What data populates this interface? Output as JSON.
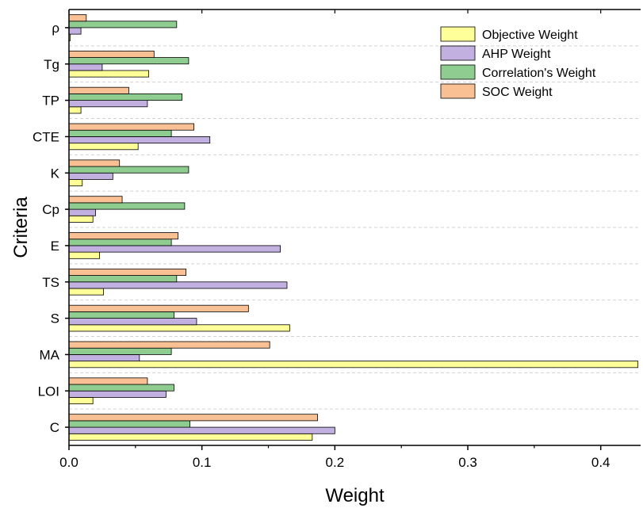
{
  "chart_data": {
    "type": "bar",
    "orientation": "horizontal",
    "xlabel": "Weight",
    "ylabel": "Criteria",
    "xlim": [
      0,
      0.43
    ],
    "xticks": [
      0.0,
      0.1,
      0.2,
      0.3,
      0.4
    ],
    "xtick_labels": [
      "0.0",
      "0.1",
      "0.2",
      "0.3",
      "0.4"
    ],
    "grid": "horizontal dashed",
    "legend_position": "top-right",
    "categories": [
      "C",
      "LOI",
      "MA",
      "S",
      "TS",
      "E",
      "Cp",
      "K",
      "CTE",
      "TP",
      "Tg",
      "ρ"
    ],
    "series": [
      {
        "name": "Objective Weight",
        "color": "#ffff99",
        "values": [
          0.183,
          0.018,
          0.428,
          0.166,
          0.026,
          0.023,
          0.018,
          0.01,
          0.052,
          0.009,
          0.06,
          0.001
        ]
      },
      {
        "name": "AHP Weight",
        "color": "#c1b0e0",
        "values": [
          0.2,
          0.073,
          0.053,
          0.096,
          0.164,
          0.159,
          0.02,
          0.033,
          0.106,
          0.059,
          0.025,
          0.009
        ]
      },
      {
        "name": "Correlation's Weight",
        "color": "#8fcc8f",
        "values": [
          0.091,
          0.079,
          0.077,
          0.079,
          0.081,
          0.077,
          0.087,
          0.09,
          0.077,
          0.085,
          0.09,
          0.081
        ]
      },
      {
        "name": "SOC Weight",
        "color": "#f9c094",
        "values": [
          0.187,
          0.059,
          0.151,
          0.135,
          0.088,
          0.082,
          0.04,
          0.038,
          0.094,
          0.045,
          0.064,
          0.013
        ]
      }
    ]
  }
}
